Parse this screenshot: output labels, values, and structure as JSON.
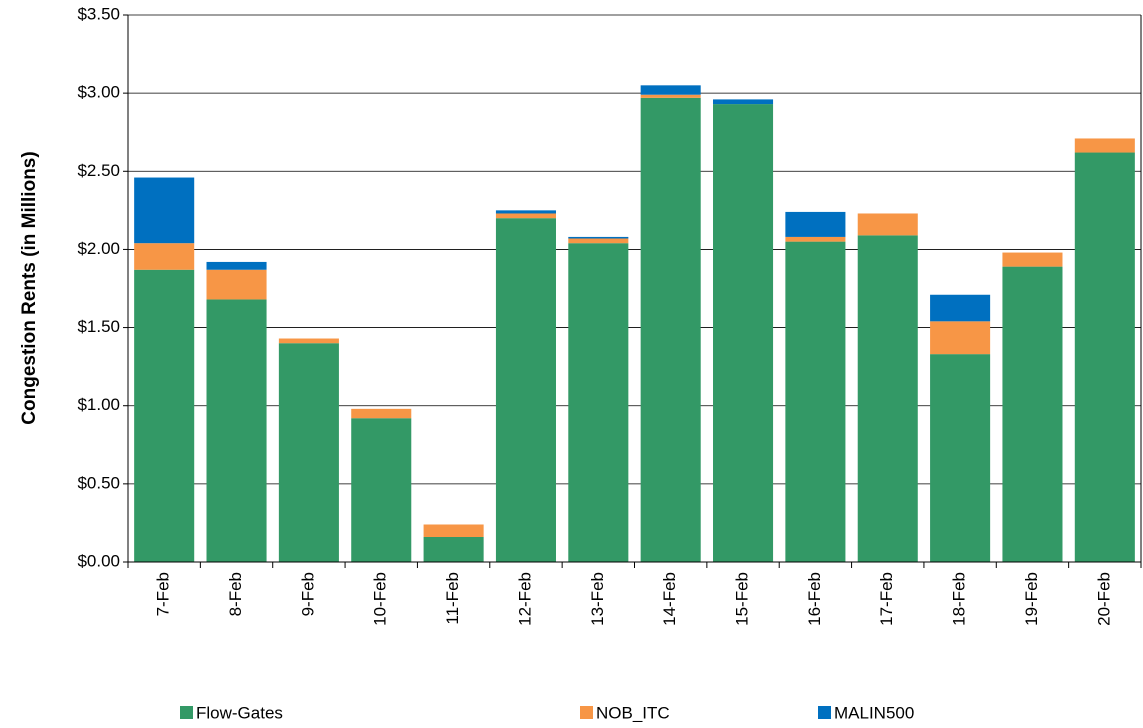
{
  "chart_data": {
    "type": "stacked_bar",
    "y_label": "Congestion Rents (in Millions)",
    "categories": [
      "7-Feb",
      "8-Feb",
      "9-Feb",
      "10-Feb",
      "11-Feb",
      "12-Feb",
      "13-Feb",
      "14-Feb",
      "15-Feb",
      "16-Feb",
      "17-Feb",
      "18-Feb",
      "19-Feb",
      "20-Feb"
    ],
    "series": [
      {
        "name": "Flow-Gates",
        "color": "#339966",
        "values": [
          1.87,
          1.68,
          1.4,
          0.92,
          0.16,
          2.2,
          2.04,
          2.97,
          2.93,
          2.05,
          2.09,
          1.33,
          1.89,
          2.62
        ]
      },
      {
        "name": "NOB_ITC",
        "color": "#F79646",
        "values": [
          0.17,
          0.19,
          0.03,
          0.06,
          0.08,
          0.03,
          0.03,
          0.02,
          0,
          0.03,
          0.14,
          0.21,
          0.09,
          0.09
        ]
      },
      {
        "name": "MALIN500",
        "color": "#0070C0",
        "values": [
          0.42,
          0.05,
          0,
          0,
          0,
          0.02,
          0.01,
          0.06,
          0.03,
          0.16,
          0,
          0.17,
          0,
          0
        ]
      }
    ],
    "ylim": [
      0,
      3.5
    ],
    "yticks": [
      {
        "value": 0,
        "label": "$0.00"
      },
      {
        "value": 0.5,
        "label": "$0.50"
      },
      {
        "value": 1,
        "label": "$1.00"
      },
      {
        "value": 1.5,
        "label": "$1.50"
      },
      {
        "value": 2,
        "label": "$2.00"
      },
      {
        "value": 2.5,
        "label": "$2.50"
      },
      {
        "value": 3,
        "label": "$3.00"
      },
      {
        "value": 3.5,
        "label": "$3.50"
      }
    ],
    "grid": true,
    "legend": "bottom"
  }
}
